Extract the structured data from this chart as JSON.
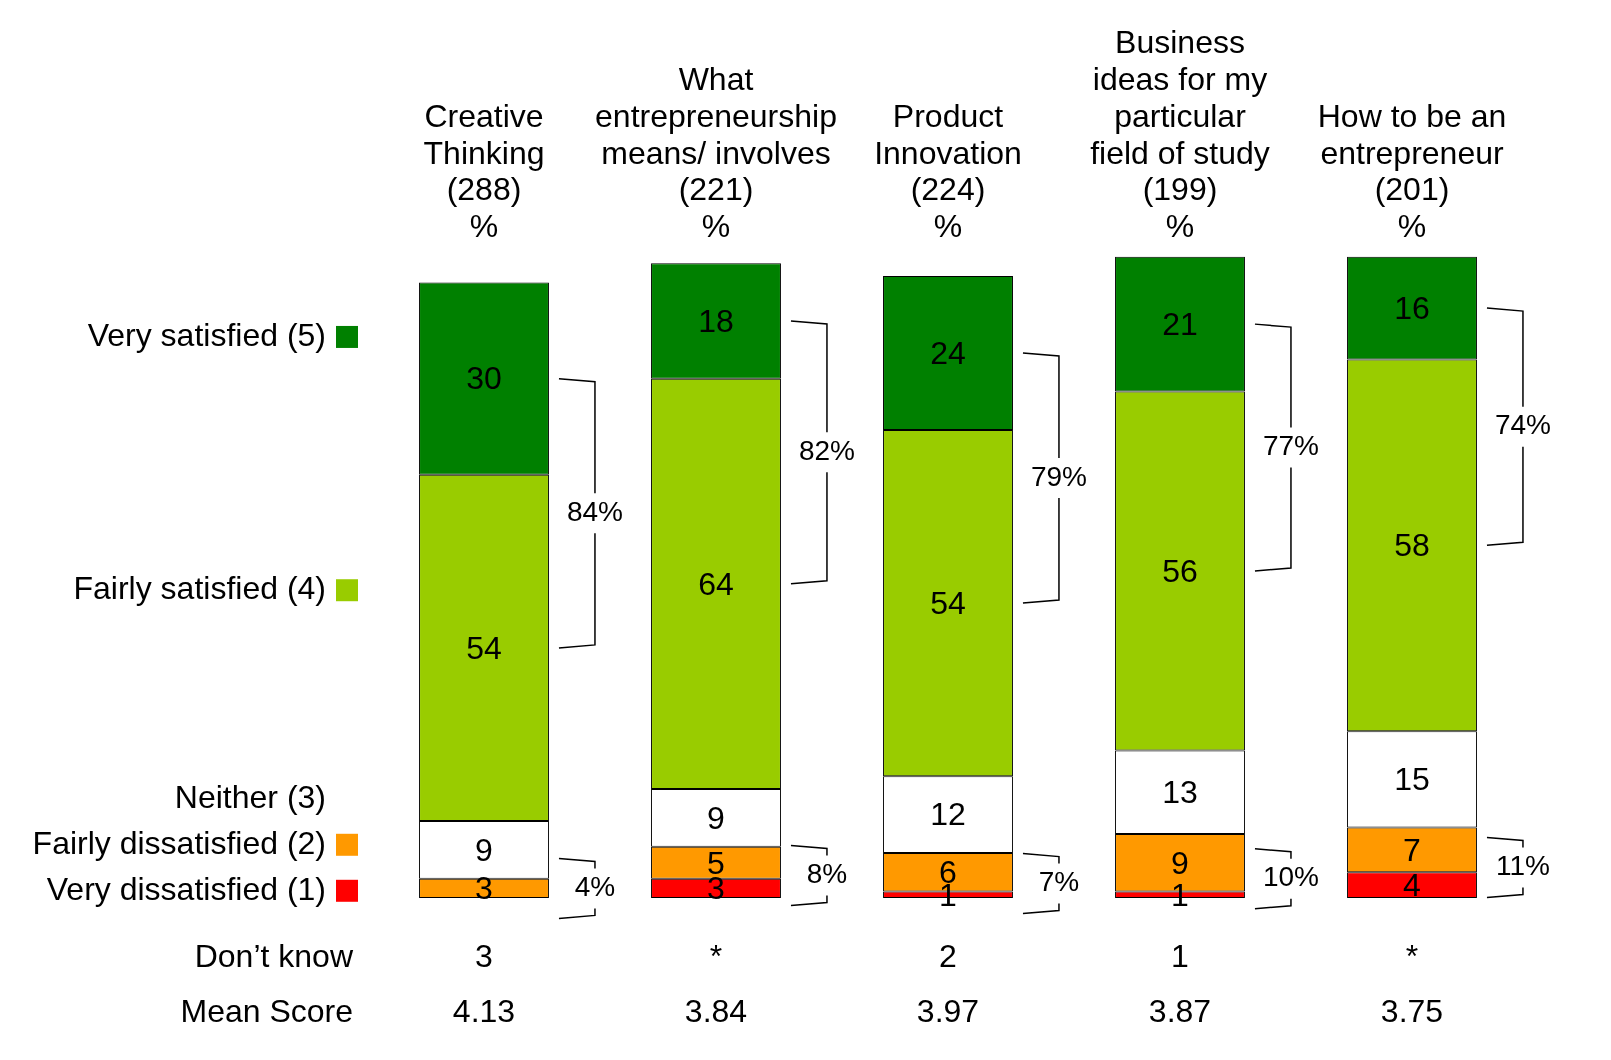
{
  "chart_data": {
    "type": "bar",
    "stacked": true,
    "data_labels": true,
    "legend": "left",
    "tick_labels": "x",
    "categories": [
      "Creative\nThinking\n(288)\n%",
      "What\nentrepreneurship\nmeans/ involves\n(221)\n%",
      "Product\nInnovation\n(224)\n%",
      "Business\nideas for my\nparticular\nfield of study\n(199)\n%",
      "How to be an\nentrepreneur\n(201)\n%"
    ],
    "series": [
      {
        "name": "Very dissatisfied (1)",
        "color": "#ff0000",
        "values": [
          null,
          3,
          1,
          1,
          4
        ]
      },
      {
        "name": "Fairly dissatisfied (2)",
        "color": "#ff9900",
        "values": [
          3,
          5,
          6,
          9,
          7
        ]
      },
      {
        "name": "Neither (3)",
        "color": "#ffffff",
        "values": [
          9,
          9,
          12,
          13,
          15
        ]
      },
      {
        "name": "Fairly satisfied (4)",
        "color": "#99cc00",
        "values": [
          54,
          64,
          54,
          56,
          58
        ]
      },
      {
        "name": "Very satisfied (5)",
        "color": "#008000",
        "values": [
          30,
          18,
          24,
          21,
          16
        ]
      }
    ],
    "annotations": [
      "84%",
      "82%",
      "79%",
      "77%",
      "74%",
      "4%",
      "8%",
      "7%",
      "10%",
      "11%",
      "Don’t know",
      "3",
      "*",
      "2",
      "1",
      "*",
      "Mean Score",
      "4.13",
      "3.84",
      "3.97",
      "3.87",
      "3.75"
    ]
  }
}
